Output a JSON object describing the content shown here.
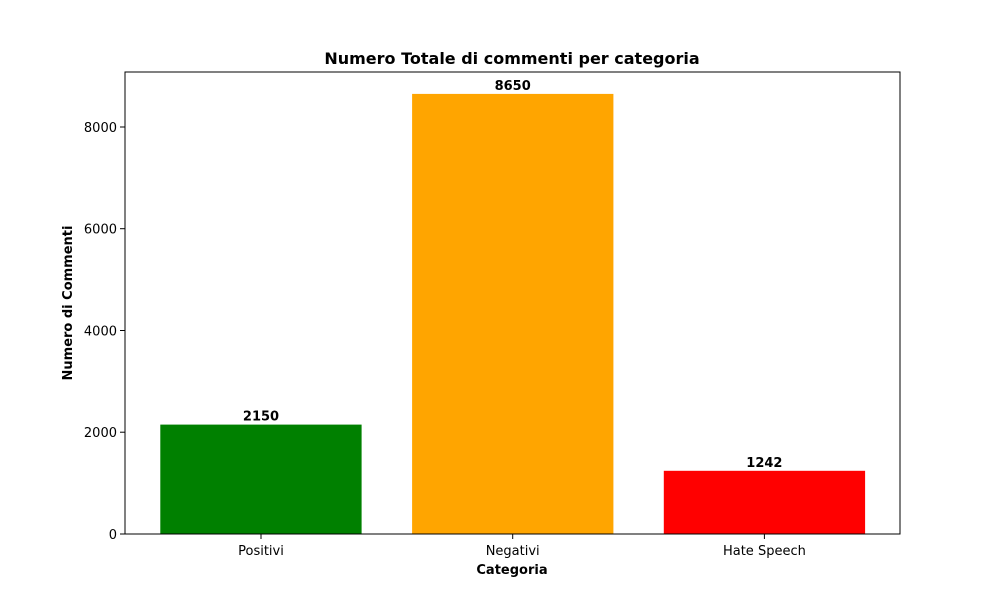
{
  "chart_data": {
    "type": "bar",
    "title": "Numero Totale di commenti per categoria",
    "xlabel": "Categoria",
    "ylabel": "Numero di Commenti",
    "categories": [
      "Positivi",
      "Negativi",
      "Hate Speech"
    ],
    "values": [
      2150,
      8650,
      1242
    ],
    "value_labels": [
      "2150",
      "8650",
      "1242"
    ],
    "colors": [
      "#008000",
      "#FFA500",
      "#FF0000"
    ],
    "ylim": [
      0,
      9080
    ],
    "yticks": [
      0,
      2000,
      4000,
      6000,
      8000
    ],
    "ytick_labels": [
      "0",
      "2000",
      "4000",
      "6000",
      "8000"
    ],
    "grid": false,
    "legend": false
  }
}
